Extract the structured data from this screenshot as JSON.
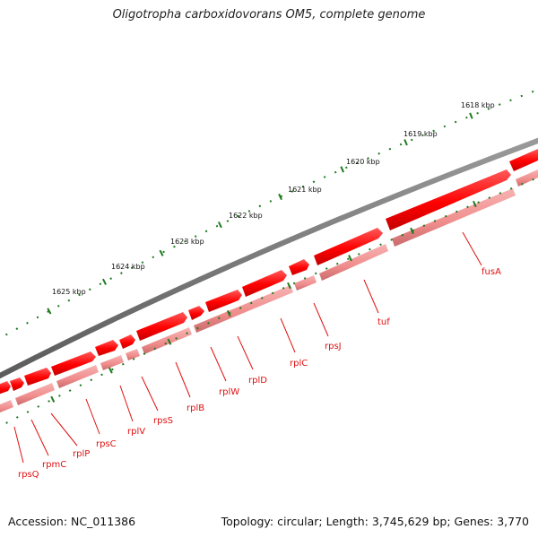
{
  "title": "Oligotropha carboxidovorans OM5, complete genome",
  "footer": {
    "accession": "Accession: NC_011386",
    "topology": "Topology: circular; Length: 3,745,629 bp; Genes: 3,770"
  },
  "scale_labels": [
    "1618 kbp",
    "1619 kbp",
    "1620 kbp",
    "1621 kbp",
    "1622 kbp",
    "1623 kbp",
    "1624 kbp",
    "1625 kbp"
  ],
  "gene_labels": [
    "fusA",
    "tuf",
    "rpsJ",
    "rplC",
    "rplD",
    "rplW",
    "rplB",
    "rpsS",
    "rplV",
    "rpsC",
    "rplP",
    "rpmC",
    "rpsQ"
  ],
  "colors": {
    "backbone": "#777777",
    "gene_dark": "#e60000",
    "gene_bright": "#ff2020",
    "gene_faded": "#f49a9a",
    "gene_faded_dark": "#c87070",
    "tick": "#1e7a1e",
    "label": "#e01010"
  }
}
